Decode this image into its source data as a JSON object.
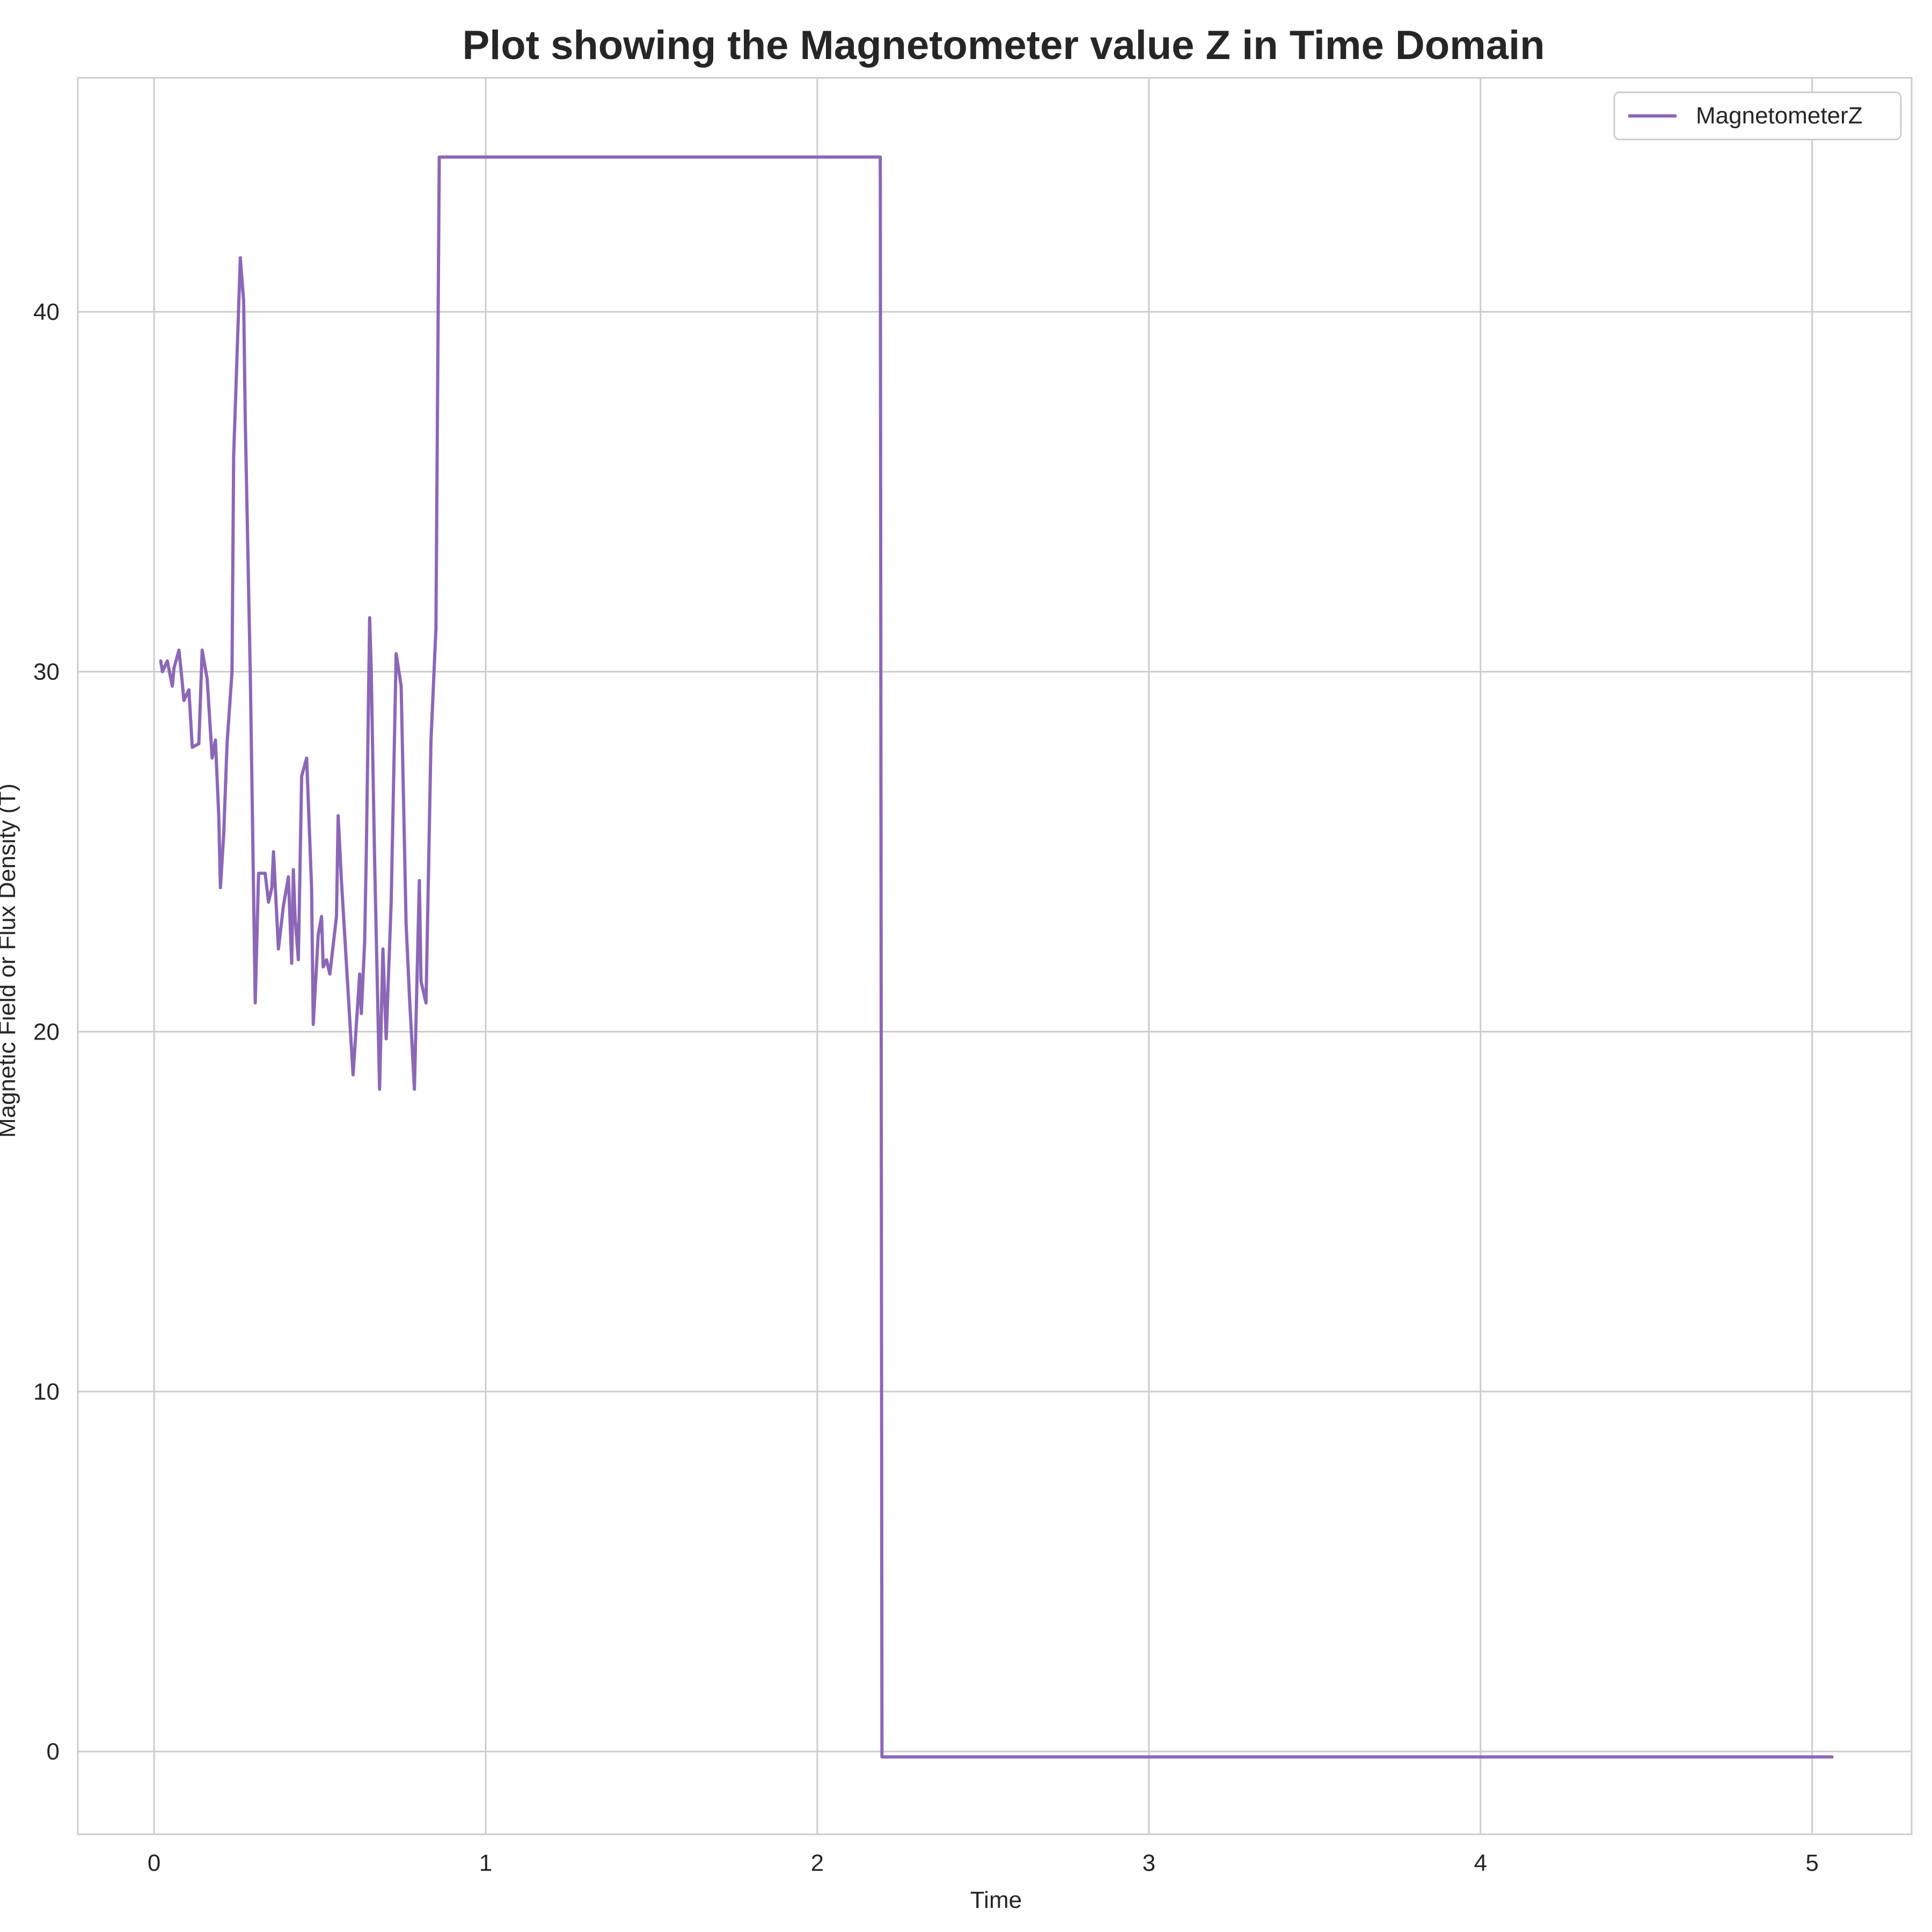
{
  "chart_data": {
    "type": "line",
    "title": "Plot showing the Magnetometer value Z in Time Domain",
    "xlabel": "Time",
    "ylabel": "Magnetic Field or Flux Density (T)",
    "xlim": [
      -0.23,
      5.3
    ],
    "ylim": [
      -2.3,
      46.5
    ],
    "xticks": [
      0,
      1,
      2,
      3,
      4,
      5
    ],
    "yticks": [
      0,
      10,
      20,
      30,
      40
    ],
    "grid": true,
    "legend_position": "top-right",
    "series": [
      {
        "name": "MagnetometerZ",
        "color": "#8c67b8",
        "x": [
          0.02,
          0.025,
          0.04,
          0.055,
          0.06,
          0.075,
          0.085,
          0.09,
          0.105,
          0.115,
          0.135,
          0.145,
          0.16,
          0.175,
          0.185,
          0.195,
          0.2,
          0.21,
          0.22,
          0.235,
          0.24,
          0.26,
          0.27,
          0.275,
          0.29,
          0.305,
          0.315,
          0.335,
          0.345,
          0.355,
          0.36,
          0.375,
          0.39,
          0.405,
          0.415,
          0.42,
          0.425,
          0.435,
          0.445,
          0.46,
          0.475,
          0.48,
          0.495,
          0.505,
          0.51,
          0.52,
          0.53,
          0.55,
          0.555,
          0.565,
          0.6,
          0.62,
          0.625,
          0.63,
          0.635,
          0.64,
          0.65,
          0.655,
          0.665,
          0.68,
          0.69,
          0.7,
          0.715,
          0.73,
          0.745,
          0.76,
          0.77,
          0.785,
          0.8,
          0.805,
          0.82,
          0.835,
          0.85,
          0.86,
          2.19,
          2.195,
          5.06
        ],
        "values": [
          30.3,
          30.0,
          30.3,
          29.6,
          30.1,
          30.6,
          29.7,
          29.2,
          29.5,
          27.9,
          28.0,
          30.6,
          29.8,
          27.6,
          28.1,
          26.0,
          24.0,
          25.5,
          28.0,
          30.0,
          36.0,
          41.5,
          40.3,
          37.0,
          30.0,
          20.8,
          24.4,
          24.4,
          23.6,
          24.0,
          25.0,
          22.3,
          23.5,
          24.3,
          21.9,
          24.5,
          23.2,
          22.0,
          27.1,
          27.6,
          24.0,
          20.2,
          22.7,
          23.2,
          21.8,
          22.0,
          21.6,
          23.2,
          26.0,
          24.2,
          18.8,
          21.6,
          20.5,
          21.5,
          22.5,
          25.0,
          31.5,
          30.0,
          24.8,
          18.4,
          22.3,
          19.8,
          23.6,
          30.5,
          29.6,
          23.0,
          21.0,
          18.4,
          24.2,
          21.4,
          20.8,
          28.1,
          31.2,
          44.3,
          44.3,
          -0.15,
          -0.15
        ]
      }
    ]
  }
}
